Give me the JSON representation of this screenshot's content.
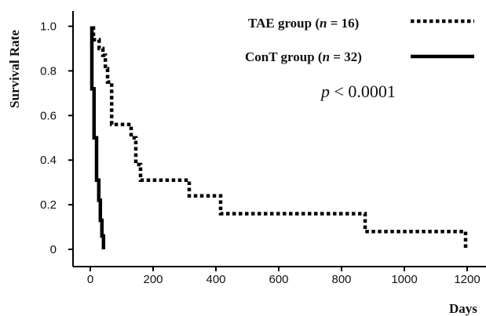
{
  "chart_data": {
    "type": "line",
    "title": "",
    "xlabel": "Days",
    "ylabel": "Survival Rate",
    "xlim": [
      -20,
      1230
    ],
    "ylim": [
      0,
      1.06
    ],
    "x_ticks": [
      0,
      200,
      400,
      600,
      800,
      1000,
      1200
    ],
    "y_ticks": [
      0,
      0.2,
      0.4,
      0.6,
      0.8,
      1.0
    ],
    "x_tick_labels": [
      "0",
      "200",
      "400",
      "600",
      "800",
      "1000",
      "1200"
    ],
    "y_tick_labels": [
      "0",
      "0.2",
      "0.4",
      "0.6",
      "0.8",
      "1.0"
    ],
    "legend_position": "top-right",
    "annotation": {
      "p_italic": "p",
      "p_rest": " < 0.0001"
    },
    "series": [
      {
        "name_prefix": "TAE group  (",
        "name_italic": "n",
        "name_suffix": " = 16)",
        "style": "dotted",
        "color": "#000000",
        "points": [
          [
            10,
            1.0
          ],
          [
            10,
            0.94
          ],
          [
            28,
            0.94
          ],
          [
            28,
            0.9
          ],
          [
            40,
            0.9
          ],
          [
            40,
            0.87
          ],
          [
            48,
            0.87
          ],
          [
            48,
            0.81
          ],
          [
            55,
            0.81
          ],
          [
            55,
            0.75
          ],
          [
            68,
            0.75
          ],
          [
            68,
            0.56
          ],
          [
            130,
            0.56
          ],
          [
            130,
            0.5
          ],
          [
            145,
            0.5
          ],
          [
            145,
            0.38
          ],
          [
            160,
            0.38
          ],
          [
            160,
            0.31
          ],
          [
            315,
            0.31
          ],
          [
            315,
            0.24
          ],
          [
            415,
            0.24
          ],
          [
            415,
            0.16
          ],
          [
            875,
            0.16
          ],
          [
            875,
            0.08
          ],
          [
            1195,
            0.08
          ],
          [
            1195,
            0.0
          ]
        ]
      },
      {
        "name_prefix": "ConT group  (",
        "name_italic": "n",
        "name_suffix": " = 32)",
        "style": "solid",
        "color": "#000000",
        "points": [
          [
            5,
            1.0
          ],
          [
            5,
            0.72
          ],
          [
            12,
            0.72
          ],
          [
            12,
            0.5
          ],
          [
            20,
            0.5
          ],
          [
            20,
            0.31
          ],
          [
            27,
            0.31
          ],
          [
            27,
            0.22
          ],
          [
            32,
            0.22
          ],
          [
            32,
            0.13
          ],
          [
            37,
            0.13
          ],
          [
            37,
            0.06
          ],
          [
            42,
            0.06
          ],
          [
            42,
            0.0
          ]
        ]
      }
    ]
  }
}
